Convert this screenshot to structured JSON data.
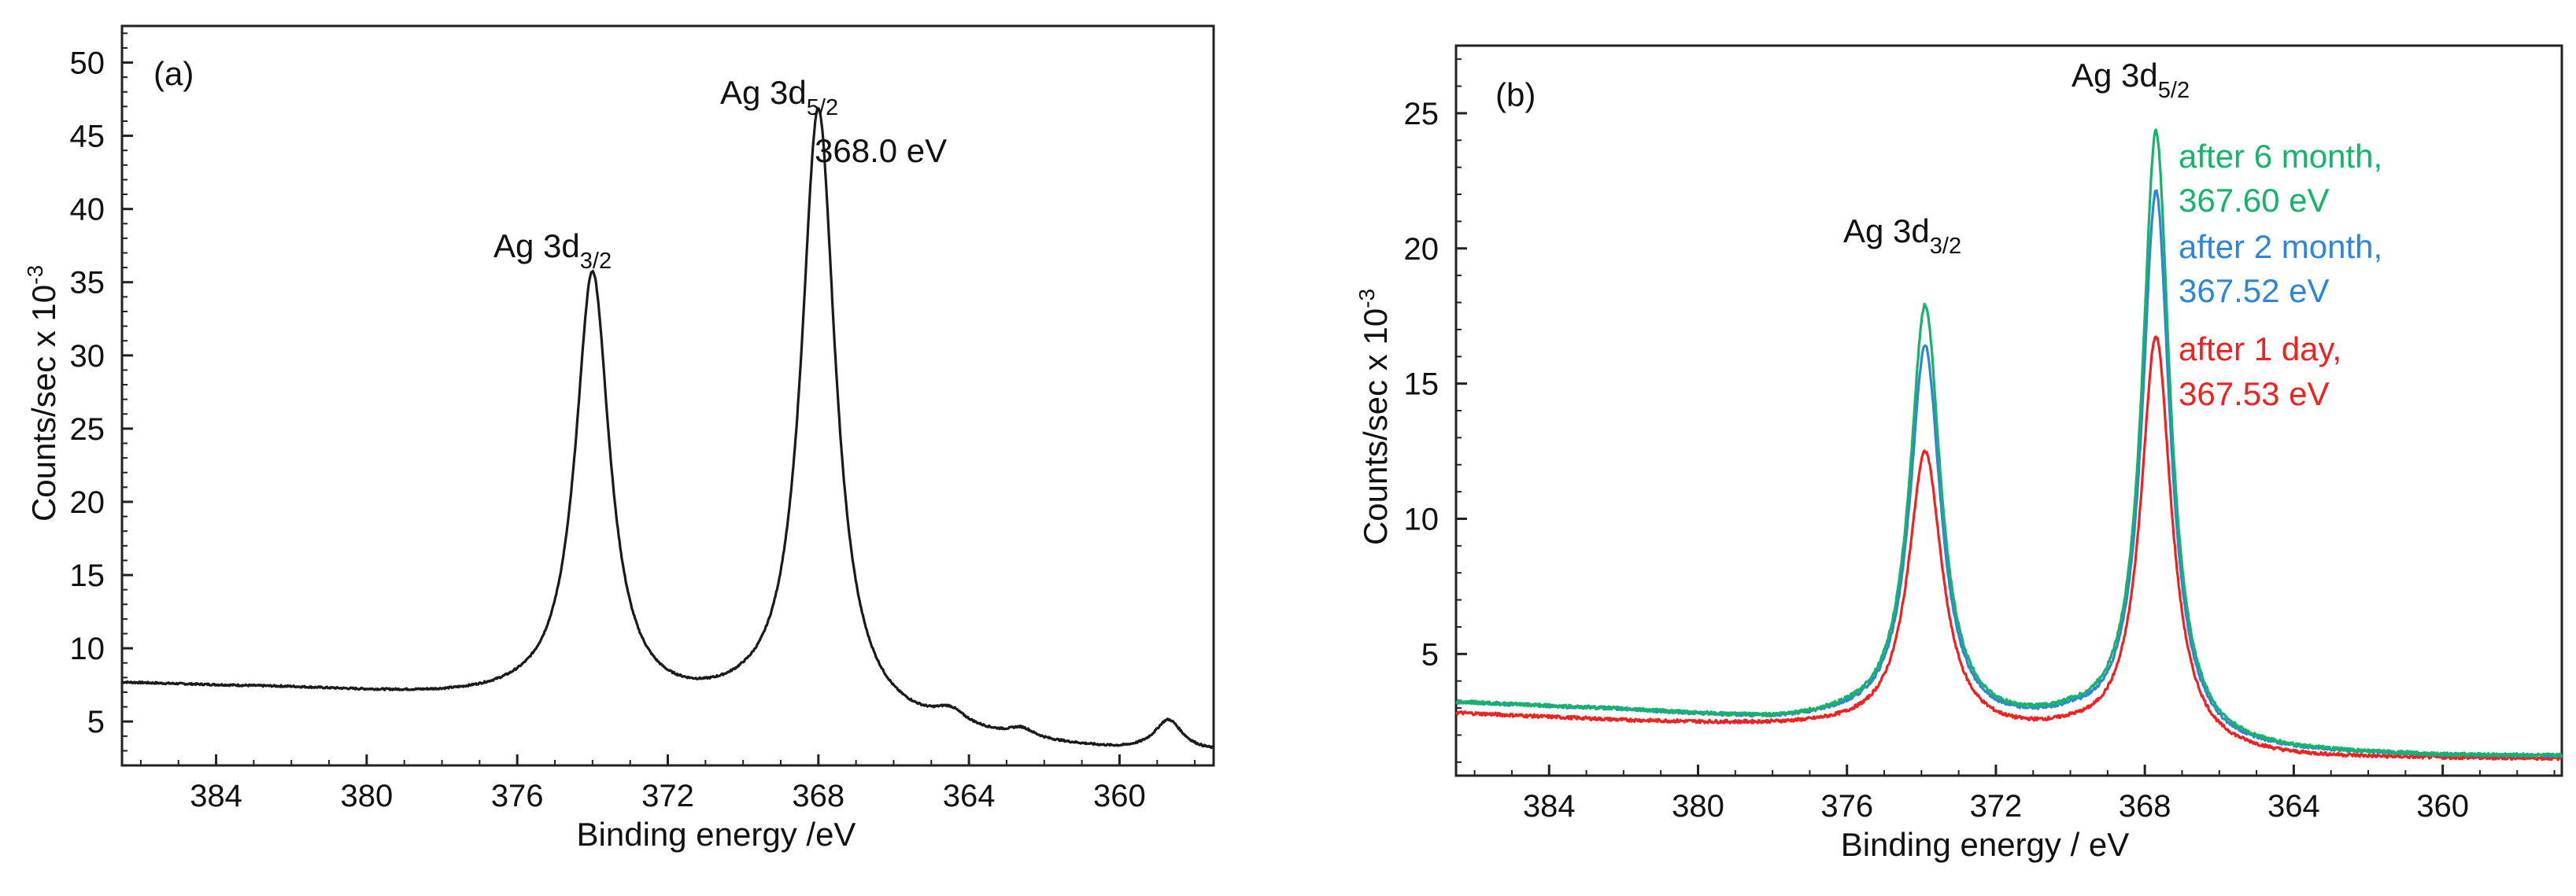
{
  "chart_data": [
    {
      "type": "line",
      "panel_label": "(a)",
      "xlabel": "Binding energy /eV",
      "ylabel": "Counts/sec x 10",
      "ylabel_exponent": "-3",
      "x_reversed": true,
      "xlim": [
        386.5,
        357.5
      ],
      "ylim": [
        2.0,
        52.5
      ],
      "x_ticks": [
        384,
        380,
        376,
        372,
        368,
        364,
        360
      ],
      "x_tick_labels": [
        "384",
        "380",
        "376",
        "372",
        "368",
        "364",
        "360"
      ],
      "y_ticks": [
        5,
        10,
        15,
        20,
        25,
        30,
        35,
        40,
        45,
        50
      ],
      "y_tick_labels": [
        "5",
        "10",
        "15",
        "20",
        "25",
        "30",
        "35",
        "40",
        "45",
        "50"
      ],
      "annotations": [
        {
          "main": "Ag 3d",
          "sub": "3/2",
          "x": 374.0
        },
        {
          "main": "Ag 3d",
          "sub": "5/2",
          "x": 368.0
        },
        {
          "text": "368.0 eV"
        }
      ],
      "series": [
        {
          "name": "Ag 3d",
          "color": "#1a1a1a",
          "baseline": [
            [
              386.5,
              7.6
            ],
            [
              382,
              7.2
            ],
            [
              378,
              6.6
            ],
            [
              376,
              6.4
            ],
            [
              374,
              6.1
            ],
            [
              372,
              5.7
            ],
            [
              370,
              5.6
            ],
            [
              368,
              5.0
            ],
            [
              366,
              4.3
            ],
            [
              364,
              3.8
            ],
            [
              362,
              3.3
            ],
            [
              360,
              2.9
            ],
            [
              358,
              2.8
            ],
            [
              357.5,
              2.8
            ]
          ],
          "peaks": [
            {
              "center": 374.0,
              "height": 29.3,
              "width": 0.55
            },
            {
              "center": 368.0,
              "height": 41.6,
              "width": 0.55
            },
            {
              "center": 364.5,
              "height": 1.0,
              "width": 0.5
            },
            {
              "center": 362.6,
              "height": 0.6,
              "width": 0.4
            },
            {
              "center": 358.7,
              "height": 2.1,
              "width": 0.45
            }
          ]
        }
      ]
    },
    {
      "type": "line",
      "panel_label": "(b)",
      "xlabel": "Binding energy / eV",
      "ylabel": "Counts/sec x 10",
      "ylabel_exponent": "-3",
      "x_reversed": true,
      "xlim": [
        386.5,
        356.8
      ],
      "ylim": [
        0.5,
        27.5
      ],
      "x_ticks": [
        384,
        380,
        376,
        372,
        368,
        364,
        360
      ],
      "x_tick_labels": [
        "384",
        "380",
        "376",
        "372",
        "368",
        "364",
        "360"
      ],
      "y_ticks": [
        5,
        10,
        15,
        20,
        25
      ],
      "y_tick_labels": [
        "5",
        "10",
        "15",
        "20",
        "25"
      ],
      "annotations": [
        {
          "main": "Ag 3d",
          "sub": "3/2",
          "x": 373.9
        },
        {
          "main": "Ag 3d",
          "sub": "5/2",
          "x": 367.7
        }
      ],
      "series": [
        {
          "name": "after 6 month,",
          "value_label": "367.60 eV",
          "color": "#16b36a",
          "baseline": [
            [
              386.5,
              3.2
            ],
            [
              382,
              2.9
            ],
            [
              378,
              2.5
            ],
            [
              376,
              2.5
            ],
            [
              374,
              2.3
            ],
            [
              372,
              2.2
            ],
            [
              370,
              2.3
            ],
            [
              368,
              1.8
            ],
            [
              366,
              1.4
            ],
            [
              364,
              1.3
            ],
            [
              360,
              1.2
            ],
            [
              356.8,
              1.2
            ]
          ],
          "peaks": [
            {
              "center": 373.9,
              "height": 15.5,
              "width": 0.5
            },
            {
              "center": 367.7,
              "height": 22.5,
              "width": 0.45
            }
          ]
        },
        {
          "name": "after 2 month,",
          "value_label": "367.52 eV",
          "color": "#2f86d6",
          "baseline": [
            [
              386.5,
              3.2
            ],
            [
              382,
              2.9
            ],
            [
              378,
              2.5
            ],
            [
              376,
              2.5
            ],
            [
              374,
              2.3
            ],
            [
              372,
              2.2
            ],
            [
              370,
              2.3
            ],
            [
              368,
              1.8
            ],
            [
              366,
              1.4
            ],
            [
              364,
              1.3
            ],
            [
              360,
              1.2
            ],
            [
              356.8,
              1.2
            ]
          ],
          "peaks": [
            {
              "center": 373.9,
              "height": 14.0,
              "width": 0.5
            },
            {
              "center": 367.7,
              "height": 20.3,
              "width": 0.45
            }
          ]
        },
        {
          "name": "after 1 day,",
          "value_label": "367.53 eV",
          "color": "#ef2222",
          "baseline": [
            [
              386.5,
              2.8
            ],
            [
              382,
              2.5
            ],
            [
              378,
              2.3
            ],
            [
              376,
              2.2
            ],
            [
              374,
              2.0
            ],
            [
              372,
              1.9
            ],
            [
              370,
              1.9
            ],
            [
              368,
              1.5
            ],
            [
              366,
              1.2
            ],
            [
              364,
              1.1
            ],
            [
              360,
              1.1
            ],
            [
              356.8,
              1.1
            ]
          ],
          "peaks": [
            {
              "center": 373.9,
              "height": 10.4,
              "width": 0.55
            },
            {
              "center": 367.7,
              "height": 15.2,
              "width": 0.5
            }
          ]
        }
      ]
    }
  ]
}
